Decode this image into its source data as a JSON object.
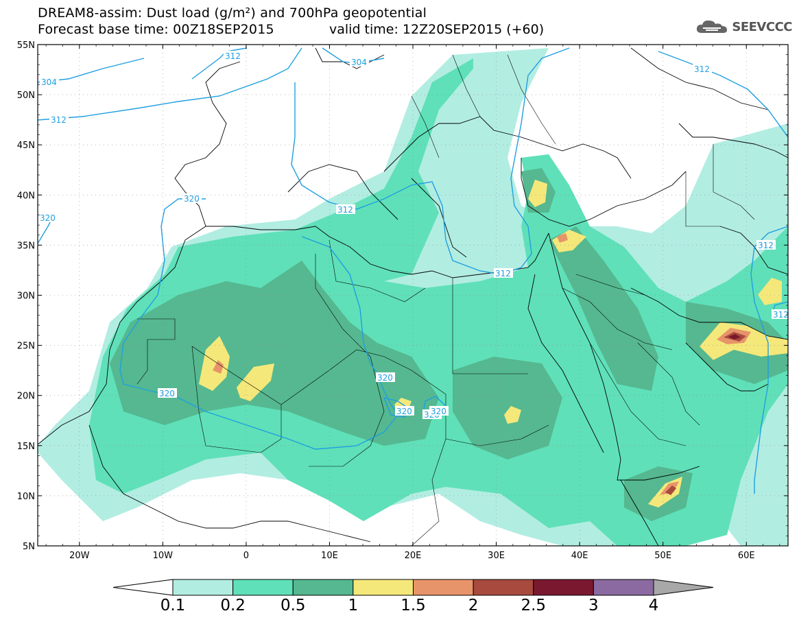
{
  "header": {
    "title": "DREAM8-assim: Dust load (g/m²) and 700hPa geopotential",
    "base_time": "Forecast base time: 00Z18SEP2015",
    "valid_time": "valid time: 12Z20SEP2015 (+60)",
    "logo_text": "SEEVCCC",
    "logo_icon": "cloud-icon"
  },
  "axes": {
    "lat_labels": [
      "55N",
      "50N",
      "45N",
      "40N",
      "35N",
      "30N",
      "25N",
      "20N",
      "15N",
      "10N",
      "5N"
    ],
    "lon_labels": [
      "20W",
      "10W",
      "0",
      "10E",
      "20E",
      "30E",
      "40E",
      "50E",
      "60E"
    ]
  },
  "contours": {
    "labels": [
      "312",
      "304",
      "304",
      "312",
      "312",
      "320",
      "320",
      "312",
      "312",
      "312",
      "312",
      "320",
      "320",
      "320",
      "320",
      "320"
    ]
  },
  "colorbar": {
    "levels": [
      "0.1",
      "0.2",
      "0.5",
      "1",
      "1.5",
      "2",
      "2.5",
      "3",
      "4"
    ],
    "colors": [
      "#ffffff",
      "#b2ede2",
      "#5fe0b8",
      "#55b890",
      "#f5e87a",
      "#e8946a",
      "#a84a3e",
      "#7a1830",
      "#8a6aa0",
      "#a8a8a8"
    ]
  },
  "chart_data": {
    "type": "heatmap",
    "title": "DREAM8-assim: Dust load (g/m²) and 700hPa geopotential",
    "lon_range": [
      -25,
      65
    ],
    "lat_range": [
      5,
      55
    ],
    "variable": "Dust load (g/m²)",
    "contour_variable": "700hPa geopotential",
    "contour_levels": [
      304,
      312,
      320
    ],
    "legend_placement": "bottom"
  }
}
